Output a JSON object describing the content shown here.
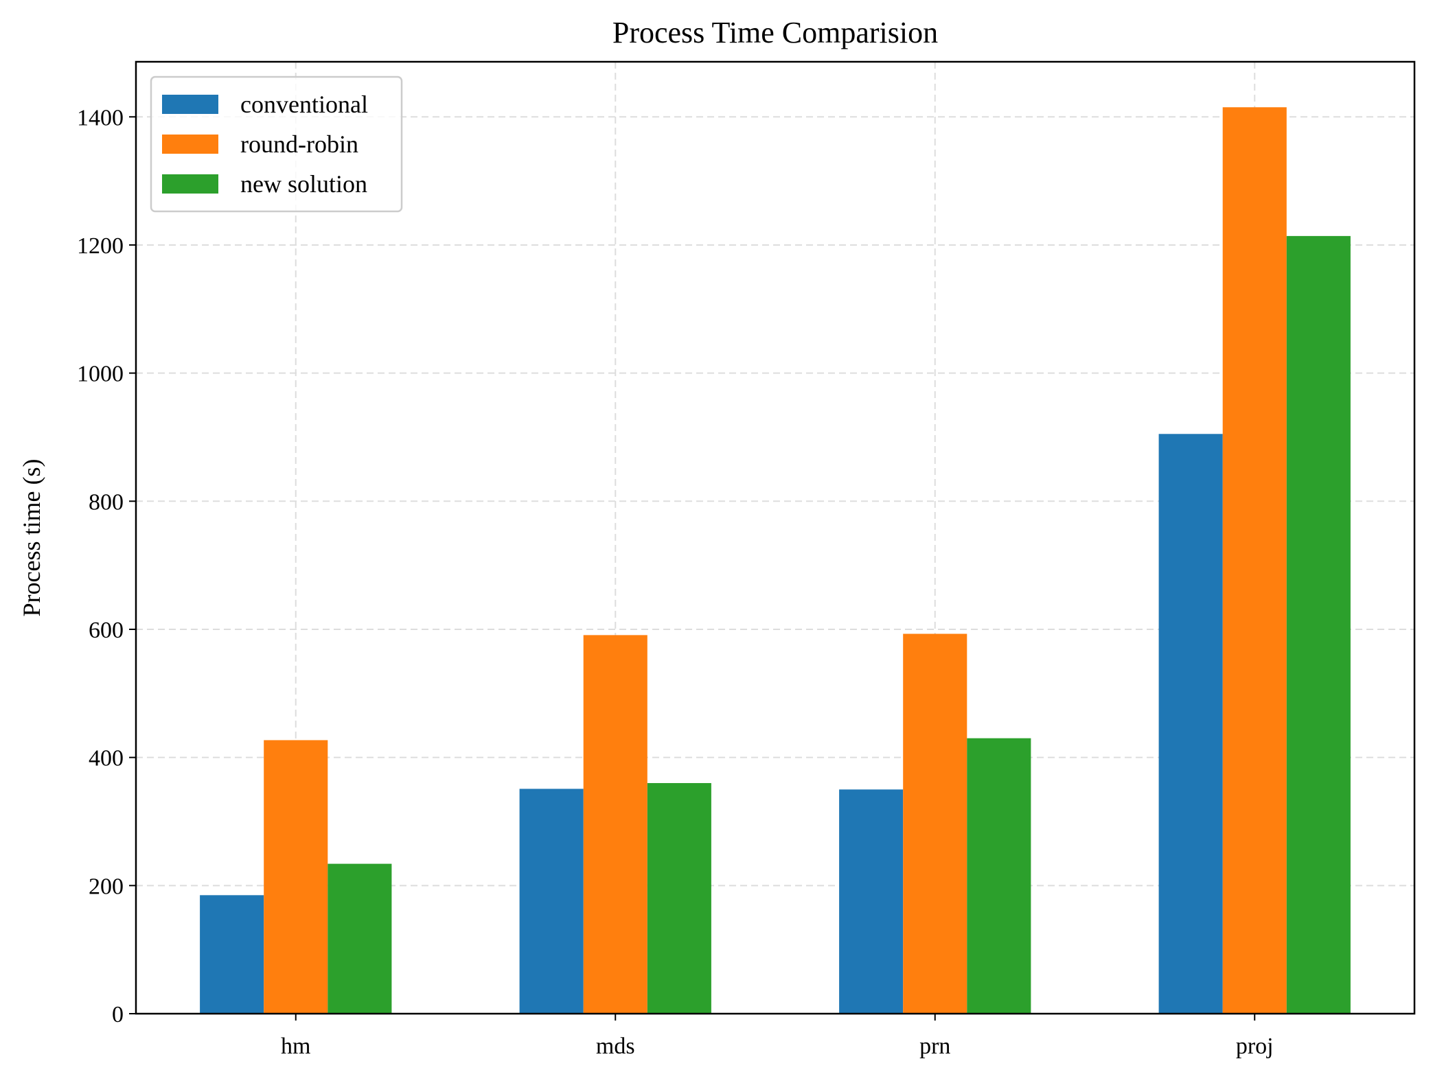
{
  "chart_data": {
    "type": "bar",
    "title": "Process Time Comparision",
    "xlabel": "",
    "ylabel": "Process time (s)",
    "categories": [
      "hm",
      "mds",
      "prn",
      "proj"
    ],
    "series": [
      {
        "name": "conventional",
        "color": "#1f77b4",
        "values": [
          185,
          351,
          350,
          905
        ]
      },
      {
        "name": "round-robin",
        "color": "#ff7f0e",
        "values": [
          427,
          591,
          593,
          1415
        ]
      },
      {
        "name": "new solution",
        "color": "#2ca02c",
        "values": [
          234,
          360,
          430,
          1214
        ]
      }
    ],
    "ylim": [
      0,
      1486
    ],
    "yticks": [
      0,
      200,
      400,
      600,
      800,
      1000,
      1200,
      1400
    ],
    "ytick_labels": [
      "0",
      "200",
      "400",
      "600",
      "800",
      "1000",
      "1200",
      "1400"
    ],
    "grid": true,
    "legend_position": "top-left"
  }
}
